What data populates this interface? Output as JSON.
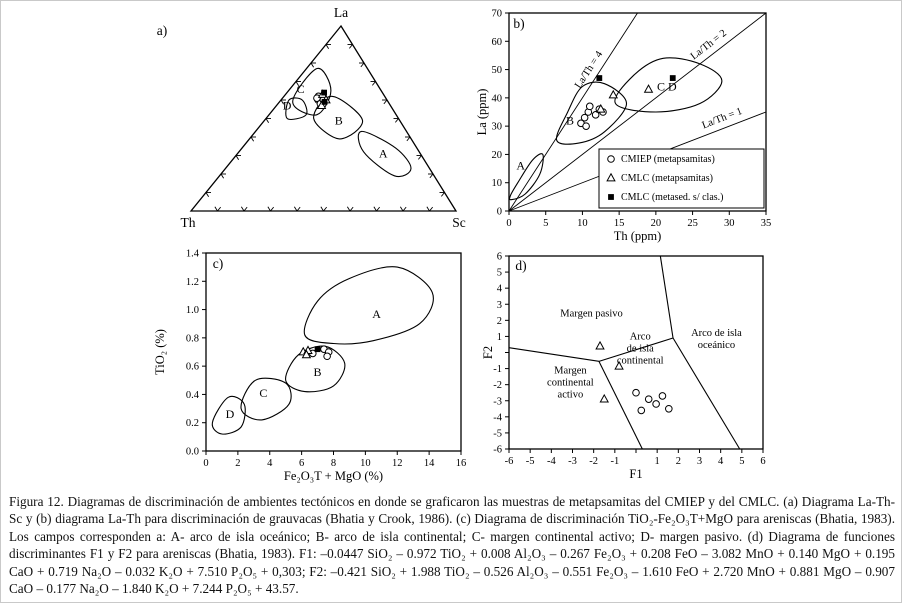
{
  "caption": {
    "text": "Figura 12. Diagramas de discriminación de ambientes tectónicos en donde se graficaron las muestras de metapsamitas del CMIEP y del CMLC. (a) Diagrama La-Th-Sc y (b) diagrama La-Th para discriminación de grauvacas (Bhatia y Crook, 1986). (c) Diagrama de discriminación TiO₂-Fe₂O₃T+MgO para areniscas (Bhatia, 1983). Los campos corresponden a: A- arco de isla oceánico; B- arco de isla continental; C- margen continental activo; D- margen pasivo. (d) Diagrama de funciones discriminantes F1 y F2 para areniscas (Bhatia, 1983). F1: –0.0447 SiO₂ – 0.972 TiO₂ + 0.008 Al₂O₃ – 0.267 Fe₂O₃ + 0.208 FeO – 3.082 MnO + 0.140 MgO + 0.195 CaO + 0.719 Na₂O – 0.032 K₂O + 7.510 P₂O₅ + 0,303; F2: –0.421 SiO₂ + 1.988 TiO₂ – 0.526 Al₂O₃ – 0.551 Fe₂O₃ – 1.610 FeO + 2.720 MnO + 0.881 MgO – 0.907 CaO – 0.177 Na₂O – 1.840 K₂O + 7.244 P₂O₅ + 43.57."
  },
  "chart_data": [
    {
      "id": "panel-a",
      "type": "scatter",
      "variant": "ternary",
      "panel_label": "a)",
      "vertex_labels": {
        "top": "La",
        "left": "Th",
        "right": "Sc"
      },
      "tick_interval_pct": 10,
      "fields": [
        {
          "label": "A",
          "label_tern": [
            31,
            14,
            55
          ],
          "outline_tern": [
            [
              43,
              17,
              40
            ],
            [
              34,
              8,
              58
            ],
            [
              23,
              7,
              70
            ],
            [
              19,
              15,
              66
            ],
            [
              32,
              21,
              47
            ]
          ]
        },
        {
          "label": "B",
          "label_tern": [
            49,
            23,
            28
          ],
          "outline_tern": [
            [
              62,
              20,
              18
            ],
            [
              49,
              14,
              37
            ],
            [
              39,
              27,
              34
            ],
            [
              50,
              32,
              18
            ]
          ]
        },
        {
          "label": "C",
          "label_tern": [
            66,
            30,
            4
          ],
          "outline_tern": [
            [
              77,
              19,
              4
            ],
            [
              65,
              19,
              16
            ],
            [
              52,
              30,
              18
            ],
            [
              59,
              36,
              5
            ]
          ]
        },
        {
          "label": "D",
          "label_tern": [
            57,
            39,
            4
          ],
          "outline_tern": [
            [
              60,
              37,
              3
            ],
            [
              60,
              32,
              8
            ],
            [
              52,
              34,
              14
            ],
            [
              50,
              42,
              8
            ]
          ]
        }
      ],
      "series": [
        {
          "name": "CMIEP (metapsamitas)",
          "marker": "circle",
          "points": [
            [
              62,
              25,
              13
            ],
            [
              61,
              24,
              15
            ],
            [
              60,
              26,
              14
            ],
            [
              59,
              25,
              16
            ],
            [
              61,
              26,
              13
            ],
            [
              58,
              26,
              16
            ],
            [
              60,
              24,
              16
            ]
          ]
        },
        {
          "name": "CMLC (metapsamitas)",
          "marker": "triangle",
          "points": [
            [
              63,
              23,
              14
            ],
            [
              60,
              23,
              17
            ],
            [
              57,
              26,
              17
            ]
          ]
        },
        {
          "name": "CMLC (metased. s/ clas.)",
          "marker": "square",
          "points": [
            [
              64,
              22,
              14
            ],
            [
              59,
              24,
              17
            ]
          ]
        }
      ]
    },
    {
      "id": "panel-b",
      "type": "scatter",
      "panel_label": "b)",
      "xlabel": "Th (ppm)",
      "ylabel": "La (ppm)",
      "xlim": [
        0,
        35
      ],
      "ylim": [
        0,
        70
      ],
      "xticks": {
        "values": [
          0,
          5,
          10,
          15,
          20,
          25,
          30,
          35
        ],
        "labels": [
          "0",
          "5",
          "10",
          "15",
          "20",
          "25",
          "30",
          "35"
        ]
      },
      "yticks": {
        "values": [
          0,
          10,
          20,
          30,
          40,
          50,
          60,
          70
        ],
        "labels": [
          "0",
          "10",
          "20",
          "30",
          "40",
          "50",
          "60",
          "70"
        ]
      },
      "ratio_lines": [
        {
          "label": "La/Th = 4",
          "slope": 4,
          "label_at": [
            12,
            48
          ]
        },
        {
          "label": "La/Th = 2",
          "slope": 2,
          "label_at": [
            28,
            56
          ]
        },
        {
          "label": "La/Th = 1",
          "slope": 1,
          "label_at": [
            29.5,
            29.5
          ]
        }
      ],
      "fields": [
        {
          "label": "A",
          "label_at": [
            1.6,
            16
          ],
          "outline": [
            [
              0.3,
              4
            ],
            [
              2.2,
              6
            ],
            [
              4.2,
              13
            ],
            [
              4.6,
              20
            ],
            [
              3.2,
              18
            ],
            [
              1.2,
              10
            ],
            [
              0.2,
              5.5
            ]
          ]
        },
        {
          "label": "B",
          "label_at": [
            8.3,
            32
          ],
          "outline": [
            [
              6.5,
              25
            ],
            [
              8,
              35
            ],
            [
              10,
              44
            ],
            [
              13,
              45
            ],
            [
              16,
              38
            ],
            [
              13,
              28
            ],
            [
              9.5,
              24
            ]
          ]
        },
        {
          "label": "C D",
          "label_at": [
            21.5,
            44
          ],
          "outline": [
            [
              14.5,
              38
            ],
            [
              17,
              48
            ],
            [
              21,
              54
            ],
            [
              26,
              52
            ],
            [
              29,
              46
            ],
            [
              26,
              38
            ],
            [
              20,
              35
            ]
          ]
        }
      ],
      "series": [
        {
          "name": "CMIEP (metapsamitas)",
          "marker": "circle",
          "points": [
            [
              9.8,
              31
            ],
            [
              10.3,
              33
            ],
            [
              10.8,
              35
            ],
            [
              11,
              37
            ],
            [
              11.8,
              34
            ],
            [
              12.3,
              36
            ],
            [
              10.5,
              30
            ],
            [
              12.8,
              35
            ]
          ]
        },
        {
          "name": "CMLC (metapsamitas)",
          "marker": "triangle",
          "points": [
            [
              12.5,
              36
            ],
            [
              14.2,
              41
            ],
            [
              19,
              43
            ]
          ]
        },
        {
          "name": "CMLC (metased. s/ clas.)",
          "marker": "square",
          "points": [
            [
              12.3,
              47
            ],
            [
              22.3,
              47
            ]
          ]
        }
      ],
      "legend": {
        "entries": [
          {
            "marker": "circle",
            "label": "CMIEP (metapsamitas)"
          },
          {
            "marker": "triangle",
            "label": "CMLC (metapsamitas)"
          },
          {
            "marker": "square",
            "label": "CMLC (metased. s/ clas.)"
          }
        ]
      }
    },
    {
      "id": "panel-c",
      "type": "scatter",
      "panel_label": "c)",
      "xlabel": "Fe₂O₃T + MgO (%)",
      "ylabel": "TiO₂ (%)",
      "xlim": [
        0,
        16
      ],
      "ylim": [
        0,
        1.4
      ],
      "xticks": {
        "values": [
          0,
          2,
          4,
          6,
          8,
          10,
          12,
          14,
          16
        ],
        "labels": [
          "0",
          "2",
          "4",
          "6",
          "8",
          "10",
          "12",
          "14",
          "16"
        ]
      },
      "yticks": {
        "values": [
          0,
          0.2,
          0.4,
          0.6,
          0.8,
          1.0,
          1.2,
          1.4
        ],
        "labels": [
          "0.0",
          "0.2",
          "0.4",
          "0.6",
          "0.8",
          "1.0",
          "1.2",
          "1.4"
        ]
      },
      "fields": [
        {
          "label": "A",
          "label_at": [
            10.7,
            0.97
          ],
          "outline": [
            [
              6.2,
              0.82
            ],
            [
              7.0,
              1.06
            ],
            [
              9.0,
              1.22
            ],
            [
              12.0,
              1.3
            ],
            [
              14.2,
              1.12
            ],
            [
              13.4,
              0.9
            ],
            [
              10.5,
              0.78
            ],
            [
              8.0,
              0.76
            ]
          ]
        },
        {
          "label": "B",
          "label_at": [
            7.0,
            0.56
          ],
          "outline": [
            [
              5.0,
              0.5
            ],
            [
              5.8,
              0.68
            ],
            [
              7.5,
              0.74
            ],
            [
              8.7,
              0.62
            ],
            [
              8.0,
              0.46
            ],
            [
              6.2,
              0.42
            ]
          ]
        },
        {
          "label": "C",
          "label_at": [
            3.6,
            0.41
          ],
          "outline": [
            [
              2.2,
              0.3
            ],
            [
              3.1,
              0.5
            ],
            [
              5.0,
              0.48
            ],
            [
              5.2,
              0.33
            ],
            [
              3.5,
              0.22
            ]
          ]
        },
        {
          "label": "D",
          "label_at": [
            1.5,
            0.26
          ],
          "outline": [
            [
              0.4,
              0.2
            ],
            [
              1.4,
              0.38
            ],
            [
              2.4,
              0.33
            ],
            [
              2.2,
              0.17
            ],
            [
              1.0,
              0.12
            ]
          ]
        }
      ],
      "series": [
        {
          "name": "CMIEP (metapsamitas)",
          "marker": "circle",
          "points": [
            [
              7.4,
              0.72
            ],
            [
              7.7,
              0.7
            ],
            [
              6.7,
              0.69
            ],
            [
              7.6,
              0.67
            ]
          ]
        },
        {
          "name": "CMLC (metapsamitas)",
          "marker": "triangle",
          "points": [
            [
              6.1,
              0.7
            ],
            [
              6.4,
              0.71
            ],
            [
              6.3,
              0.68
            ]
          ]
        },
        {
          "name": "CMLC (metased. s/ clas.)",
          "marker": "square",
          "points": [
            [
              7.0,
              0.72
            ]
          ]
        }
      ]
    },
    {
      "id": "panel-d",
      "type": "scatter",
      "panel_label": "d)",
      "xlabel": "F1",
      "ylabel": "F2",
      "xlim": [
        -6,
        6
      ],
      "ylim": [
        -6,
        6
      ],
      "xticks": {
        "values": [
          -6,
          -5,
          -4,
          -3,
          -2,
          -1,
          0,
          1,
          2,
          3,
          4,
          5,
          6
        ],
        "labels": [
          "-6",
          "-5",
          "-4",
          "-3",
          "-2",
          "-1",
          "",
          "1",
          "2",
          "3",
          "4",
          "5",
          "6"
        ]
      },
      "yticks": {
        "values": [
          -6,
          -5,
          -4,
          -3,
          -2,
          -1,
          0,
          1,
          2,
          3,
          4,
          5,
          6
        ],
        "labels": [
          "-6",
          "-5",
          "-4",
          "-3",
          "-2",
          "-1",
          "",
          "1",
          "2",
          "3",
          "4",
          "5",
          "6"
        ]
      },
      "boundaries": [
        {
          "points": [
            [
              1.15,
              6
            ],
            [
              1.75,
              0.9
            ]
          ]
        },
        {
          "points": [
            [
              1.75,
              0.9
            ],
            [
              4.9,
              -6
            ]
          ]
        },
        {
          "points": [
            [
              1.75,
              0.9
            ],
            [
              -1.75,
              -0.55
            ]
          ]
        },
        {
          "points": [
            [
              -1.75,
              -0.55
            ],
            [
              -6,
              0.3
            ]
          ]
        },
        {
          "points": [
            [
              -1.75,
              -0.55
            ],
            [
              0.3,
              -6
            ]
          ]
        }
      ],
      "region_labels": [
        {
          "lines": [
            "Margen pasivo"
          ],
          "at": [
            -2.1,
            2.5
          ]
        },
        {
          "lines": [
            "Arco de isla",
            "oceánico"
          ],
          "at": [
            3.8,
            0.9
          ]
        },
        {
          "lines": [
            "Arco",
            "de isla",
            "continental"
          ],
          "at": [
            0.2,
            0.3
          ]
        },
        {
          "lines": [
            "Margen",
            "continental",
            "activo"
          ],
          "at": [
            -3.1,
            -1.8
          ]
        }
      ],
      "series": [
        {
          "name": "CMIEP (metapsamitas)",
          "marker": "circle",
          "points": [
            [
              0.0,
              -2.5
            ],
            [
              0.6,
              -2.9
            ],
            [
              0.95,
              -3.2
            ],
            [
              1.25,
              -2.7
            ],
            [
              1.55,
              -3.5
            ],
            [
              0.25,
              -3.6
            ]
          ]
        },
        {
          "name": "CMLC (metapsamitas)",
          "marker": "triangle",
          "points": [
            [
              -1.7,
              0.4
            ],
            [
              -0.8,
              -0.85
            ],
            [
              -1.5,
              -2.9
            ]
          ]
        }
      ]
    }
  ]
}
